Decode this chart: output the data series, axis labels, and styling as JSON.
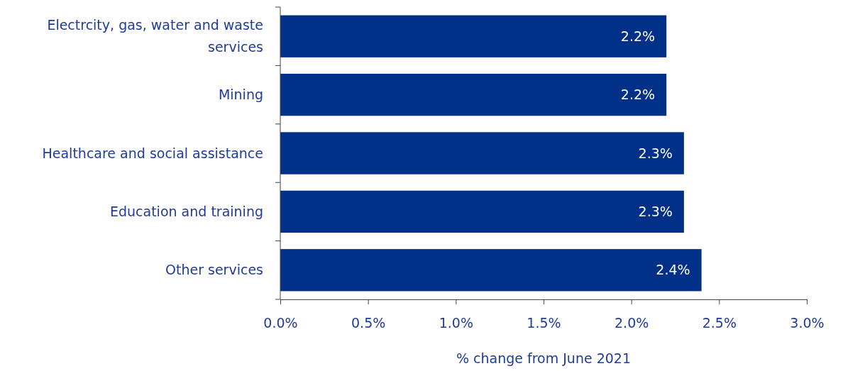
{
  "chart_data": {
    "type": "bar",
    "orientation": "horizontal",
    "categories": [
      "Electrcity, gas, water and waste services",
      "Mining",
      "Healthcare and social assistance",
      "Education and training",
      "Other services"
    ],
    "series": [
      {
        "color": "#003087",
        "values": [
          2.2,
          2.2,
          2.3,
          2.3,
          2.4
        ],
        "value_labels": [
          "2.2%",
          "2.2%",
          "2.3%",
          "2.3%",
          "2.4%"
        ]
      }
    ],
    "xlim": [
      0,
      3
    ],
    "xticks": [
      {
        "value": 0,
        "label": "0.0%"
      },
      {
        "value": 0.5,
        "label": "0.5%"
      },
      {
        "value": 1,
        "label": "1.0%"
      },
      {
        "value": 1.5,
        "label": "1.5%"
      },
      {
        "value": 2,
        "label": "2.0%"
      },
      {
        "value": 2.5,
        "label": "2.5%"
      },
      {
        "value": 3,
        "label": "3.0%"
      }
    ],
    "xlabel": "% change from June 2021",
    "tick_labels": "xy"
  }
}
